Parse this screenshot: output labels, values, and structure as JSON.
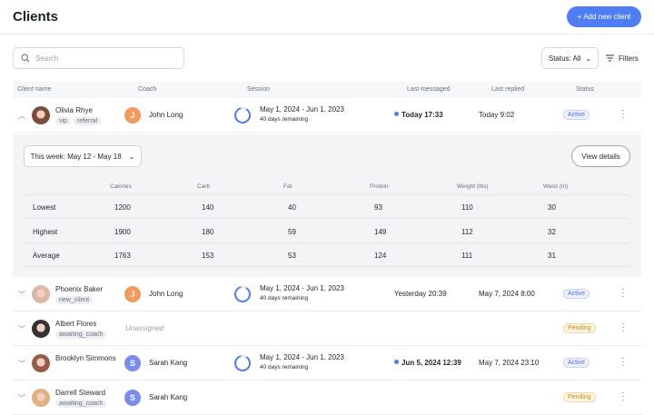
{
  "header": {
    "title": "Clients",
    "add_button": "+ Add new client"
  },
  "toolbar": {
    "search_placeholder": "Search",
    "status_filter": "Status: All",
    "filters_label": "Filters"
  },
  "columns": [
    "Client name",
    "Coach",
    "Session",
    "Last messaged",
    "Last replied",
    "Status"
  ],
  "expanded": {
    "week_select": "This week: May 12 - May 18",
    "view_details": "View details",
    "columns": [
      "",
      "Calories",
      "Carb",
      "Fat",
      "Protein",
      "Weight (lbs)",
      "Waist (in)"
    ],
    "rows": [
      [
        "Lowest",
        "1200",
        "140",
        "40",
        "93",
        "110",
        "30"
      ],
      [
        "Highest",
        "1900",
        "180",
        "59",
        "149",
        "112",
        "32"
      ],
      [
        "Average",
        "1763",
        "153",
        "53",
        "124",
        "111",
        "31"
      ]
    ]
  },
  "colors": {
    "accent": "#4f7df3",
    "coach_j": "#f59a5e",
    "coach_s": "#7b8cf0"
  },
  "clients": [
    {
      "name": "Olivia Rhye",
      "tags": [
        "vip",
        "referral"
      ],
      "coach": "John Long",
      "coach_initial": "J",
      "session": "May 1, 2024 - Jun 1, 2023",
      "remaining": "40 days remaining",
      "last_messaged": "Today 17:33",
      "unread": true,
      "last_replied": "Today 9:02",
      "status": "Active",
      "expanded": true
    },
    {
      "name": "Phoenix Baker",
      "tags": [
        "new_client"
      ],
      "coach": "John Long",
      "coach_initial": "J",
      "session": "May 1, 2024 - Jun 1, 2023",
      "remaining": "40 days remaining",
      "last_messaged": "Yesterday 20:39",
      "unread": false,
      "last_replied": "May 7, 2024 8:00",
      "status": "Active"
    },
    {
      "name": "Albert Flores",
      "tags": [
        "awaiting_coach"
      ],
      "coach": "Unassigned",
      "status": "Pending"
    },
    {
      "name": "Brooklyn Simmons",
      "tags": [],
      "coach": "Sarah Kang",
      "coach_initial": "S",
      "session": "May 1, 2024 - Jun 1, 2023",
      "remaining": "40 days remaining",
      "last_messaged": "Jun 5, 2024 12:39",
      "unread": true,
      "last_replied": "May 7, 2024 23:10",
      "status": "Active"
    },
    {
      "name": "Darrell Steward",
      "tags": [
        "awaiting_coach"
      ],
      "coach": "Sarah Kang",
      "coach_initial": "S",
      "status": "Pending"
    }
  ]
}
